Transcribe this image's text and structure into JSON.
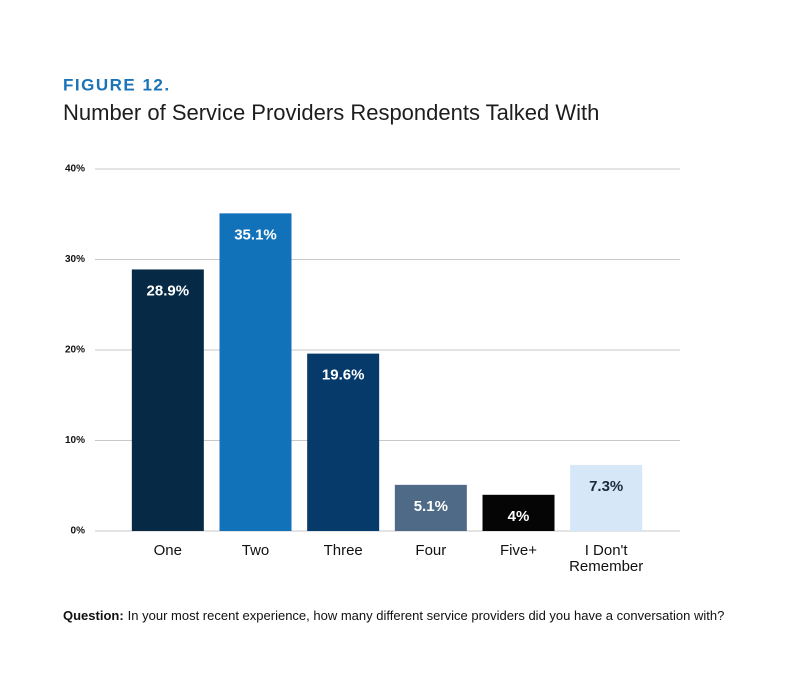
{
  "chart_data": {
    "type": "bar",
    "title": "FIGURE 12.",
    "subtitle": "Number of Service Providers Respondents Talked With",
    "categories": [
      "One",
      "Two",
      "Three",
      "Four",
      "Five+",
      "I Don't Remember"
    ],
    "values": [
      28.9,
      35.1,
      19.6,
      5.1,
      4,
      7.3
    ],
    "value_labels": [
      "28.9%",
      "35.1%",
      "19.6%",
      "5.1%",
      "4%",
      "7.3%"
    ],
    "colors": [
      "#062a45",
      "#1172ba",
      "#053a6b",
      "#4f6a86",
      "#050505",
      "#d6e7f7"
    ],
    "value_label_colors": [
      "#ffffff",
      "#ffffff",
      "#ffffff",
      "#ffffff",
      "#ffffff",
      "#1a2b3c"
    ],
    "ylim": [
      0,
      40
    ],
    "yticks": [
      {
        "value": 0,
        "label": "0%"
      },
      {
        "value": 10,
        "label": "10%"
      },
      {
        "value": 20,
        "label": "20%"
      },
      {
        "value": 30,
        "label": "30%"
      },
      {
        "value": 40,
        "label": "40%"
      }
    ],
    "grid": true,
    "note_label": "Question:",
    "note": "In your most recent experience, how many different service providers did you have a conversation with?"
  }
}
